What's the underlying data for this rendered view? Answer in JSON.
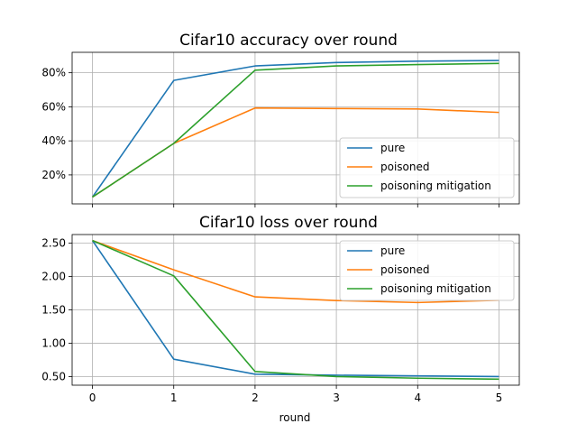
{
  "chart_data": [
    {
      "type": "line",
      "title": "Cifar10 accuracy over round",
      "x": [
        0,
        1,
        2,
        3,
        4,
        5
      ],
      "xlabel": "",
      "ylabel": "",
      "ylim": [
        0.03,
        0.92
      ],
      "yticks": [
        0.2,
        0.4,
        0.6,
        0.8
      ],
      "ytick_labels": [
        "20%",
        "40%",
        "60%",
        "80%"
      ],
      "grid": true,
      "legend": "lower-right",
      "series": [
        {
          "name": "pure",
          "color": "#1f77b4",
          "values": [
            0.07,
            0.755,
            0.84,
            0.86,
            0.868,
            0.872
          ]
        },
        {
          "name": "poisoned",
          "color": "#ff7f0e",
          "values": [
            0.07,
            0.385,
            0.593,
            0.59,
            0.587,
            0.567
          ]
        },
        {
          "name": "poisoning mitigation",
          "color": "#2ca02c",
          "values": [
            0.07,
            0.385,
            0.815,
            0.84,
            0.848,
            0.855
          ]
        }
      ]
    },
    {
      "type": "line",
      "title": "Cifar10 loss over round",
      "x": [
        0,
        1,
        2,
        3,
        4,
        5
      ],
      "xticks": [
        "0",
        "1",
        "2",
        "3",
        "4",
        "5"
      ],
      "xlabel": "round",
      "ylabel": "",
      "ylim": [
        0.37,
        2.63
      ],
      "yticks": [
        0.5,
        1.0,
        1.5,
        2.0,
        2.5
      ],
      "ytick_labels": [
        "0.50",
        "1.00",
        "1.50",
        "2.00",
        "2.50"
      ],
      "grid": true,
      "legend": "upper-right",
      "series": [
        {
          "name": "pure",
          "color": "#1f77b4",
          "values": [
            2.54,
            0.76,
            0.535,
            0.52,
            0.51,
            0.5
          ]
        },
        {
          "name": "poisoned",
          "color": "#ff7f0e",
          "values": [
            2.54,
            2.1,
            1.695,
            1.64,
            1.61,
            1.645
          ]
        },
        {
          "name": "poisoning mitigation",
          "color": "#2ca02c",
          "values": [
            2.54,
            2.01,
            0.575,
            0.5,
            0.475,
            0.46
          ]
        }
      ]
    }
  ]
}
